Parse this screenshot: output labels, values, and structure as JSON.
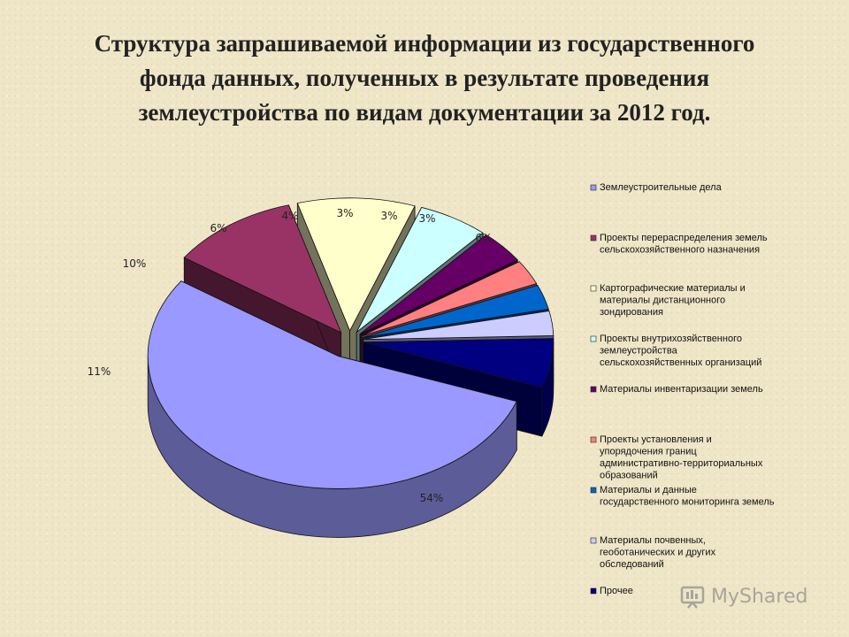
{
  "title": "Структура запрашиваемой информации из государственного фонда данных, полученных в результате проведения землеустройства по видам документации за 2012 год.",
  "chart_data": {
    "type": "pie",
    "three_d": true,
    "legend_position": "right",
    "slices": [
      {
        "name": "Землеустроительные дела",
        "value": 54,
        "label": "54%",
        "color": "#9999ff"
      },
      {
        "name": "Проекты перераспределения земель сельскохозяйственного назначения",
        "value": 11,
        "label": "11%",
        "color": "#993366"
      },
      {
        "name": "Картографические материалы и материалы дистанционного зондирования",
        "value": 10,
        "label": "10%",
        "color": "#ffffcc"
      },
      {
        "name": "Проекты внутрихозяйственного землеустройства сельскохозяйственных организаций",
        "value": 6,
        "label": "6%",
        "color": "#ccffff"
      },
      {
        "name": "Материалы инвентаризации земель",
        "value": 4,
        "label": "4%",
        "color": "#660066"
      },
      {
        "name": "Проекты установления и упорядочения границ административно-территориальных образований",
        "value": 3,
        "label": "3%",
        "color": "#ff8080"
      },
      {
        "name": "Материалы и данные государственного мониторинга земель",
        "value": 3,
        "label": "3%",
        "color": "#0066cc"
      },
      {
        "name": "Материалы почвенных, геоботанических и других обследований",
        "value": 3,
        "label": "3%",
        "color": "#ccccff"
      },
      {
        "name": "Прочее",
        "value": 6,
        "label": "6%",
        "color": "#000080"
      }
    ]
  },
  "watermark": {
    "text": "MyShared",
    "icon": "presentation-board-icon"
  }
}
